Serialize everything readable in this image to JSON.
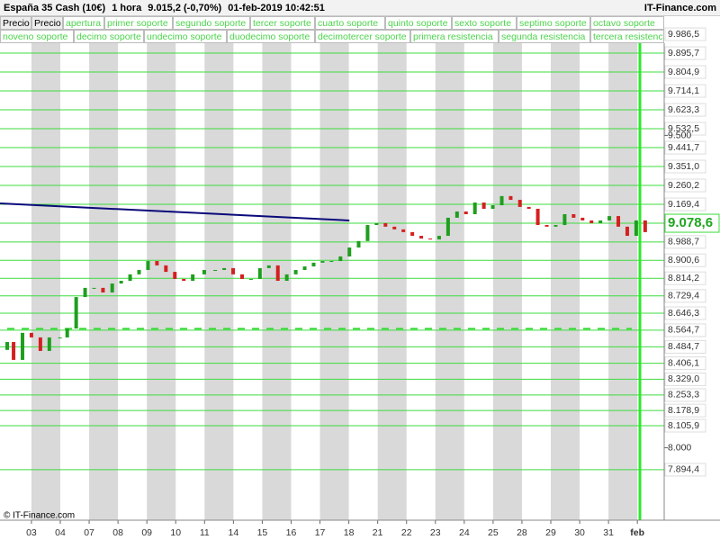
{
  "header": {
    "title": "España 35 Cash (10€)",
    "interval": "1 hora",
    "price": "9.015,2 (-0,70%)",
    "datetime": "01-feb-2019 10:42:51",
    "site": "IT-Finance.com"
  },
  "buttons": [
    [
      "Precio",
      "Precio",
      "apertura",
      "primer soporte",
      "segundo soporte",
      "tercer soporte",
      "cuarto soporte",
      "quinto soporte",
      "sexto soporte",
      "septimo soporte",
      "octavo soporte"
    ],
    [
      "noveno soporte",
      "decimo soporte",
      "undecimo soporte",
      "duodecimo soporte",
      "decimotercer soporte",
      "primera resistencia",
      "segunda resistencia",
      "tercera resistencia"
    ]
  ],
  "chart_data": {
    "type": "candlestick",
    "x": [
      -0.84,
      -0.62,
      -0.31,
      0,
      0.31,
      0.62,
      0.99,
      1.24,
      1.55,
      1.86,
      2.17,
      2.48,
      2.8,
      3.11,
      3.42,
      3.73,
      4.04,
      4.35,
      4.66,
      4.97,
      5.28,
      5.59,
      5.99,
      6.37,
      6.68,
      6.99,
      7.3,
      7.61,
      7.92,
      8.23,
      8.54,
      8.85,
      9.16,
      9.47,
      9.78,
      10.09,
      10.4,
      10.71,
      11.02,
      11.34,
      11.65,
      11.96,
      12.27,
      12.58,
      12.89,
      13.2,
      13.51,
      13.82,
      14.13,
      14.44,
      14.75,
      15.06,
      15.37,
      15.68,
      15.99,
      16.3,
      16.61,
      16.93,
      17.24,
      17.55,
      17.86,
      18.17,
      18.48,
      18.79,
      19.1,
      19.41,
      19.72,
      20.03,
      20.34,
      20.65,
      20.96,
      21.27
    ],
    "open": [
      8470,
      8508,
      8422,
      8552,
      8530,
      8465,
      8530,
      8530,
      8573,
      8724,
      8768,
      8768,
      8746,
      8789,
      8802,
      8833,
      8854,
      8897,
      8876,
      8845,
      8811,
      8802,
      8833,
      8854,
      8854,
      8863,
      8833,
      8811,
      8811,
      8863,
      8876,
      8802,
      8833,
      8854,
      8871,
      8889,
      8897,
      8897,
      8919,
      8962,
      8993,
      9070,
      9079,
      9062,
      9049,
      9036,
      9018,
      9005,
      9001,
      9018,
      9105,
      9135,
      9122,
      9178,
      9148,
      9165,
      9209,
      9191,
      9157,
      9148,
      9070,
      9062,
      9070,
      9122,
      9105,
      9092,
      9079,
      9092,
      9113,
      9062,
      9018,
      9092
    ],
    "close": [
      8508,
      8422,
      8552,
      8530,
      8465,
      8530,
      8530,
      8573,
      8724,
      8768,
      8768,
      8746,
      8789,
      8802,
      8833,
      8854,
      8897,
      8876,
      8845,
      8811,
      8802,
      8833,
      8854,
      8854,
      8863,
      8833,
      8811,
      8811,
      8863,
      8876,
      8802,
      8833,
      8854,
      8871,
      8889,
      8897,
      8897,
      8919,
      8962,
      8993,
      9070,
      9079,
      9062,
      9049,
      9036,
      9018,
      9005,
      9001,
      9018,
      9105,
      9135,
      9122,
      9178,
      9148,
      9165,
      9209,
      9191,
      9157,
      9148,
      9070,
      9062,
      9070,
      9122,
      9105,
      9092,
      9079,
      9092,
      9113,
      9062,
      9018,
      9092,
      9036
    ],
    "up_color": "#1f9e1f",
    "down_color": "#d42020",
    "level_color": "#3ddc3d",
    "xlim": [
      -1.09,
      21.93
    ],
    "xticks": [
      {
        "value": 0,
        "label": "03"
      },
      {
        "value": 1,
        "label": "04"
      },
      {
        "value": 2,
        "label": "07"
      },
      {
        "value": 3,
        "label": "08"
      },
      {
        "value": 4,
        "label": "09"
      },
      {
        "value": 5,
        "label": "10"
      },
      {
        "value": 6,
        "label": "11"
      },
      {
        "value": 7,
        "label": "14"
      },
      {
        "value": 8,
        "label": "15"
      },
      {
        "value": 9,
        "label": "16"
      },
      {
        "value": 10,
        "label": "17"
      },
      {
        "value": 11,
        "label": "18"
      },
      {
        "value": 12,
        "label": "21"
      },
      {
        "value": 13,
        "label": "22"
      },
      {
        "value": 14,
        "label": "23"
      },
      {
        "value": 15,
        "label": "24"
      },
      {
        "value": 16,
        "label": "25"
      },
      {
        "value": 17,
        "label": "28"
      },
      {
        "value": 18,
        "label": "29"
      },
      {
        "value": 19,
        "label": "30"
      },
      {
        "value": 20,
        "label": "31"
      },
      {
        "value": 21,
        "label": "feb"
      }
    ],
    "ylim": [
      7652,
      10151
    ],
    "yticks": [
      {
        "value": 9986.5,
        "label": "9.986,5"
      },
      {
        "value": 9895.7,
        "label": "9.895,7"
      },
      {
        "value": 9804.9,
        "label": "9.804,9"
      },
      {
        "value": 9714.1,
        "label": "9.714,1"
      },
      {
        "value": 9623.3,
        "label": "9.623,3"
      },
      {
        "value": 9532.5,
        "label": "9.532,5"
      },
      {
        "value": 9441.7,
        "label": "9.441,7"
      },
      {
        "value": 9351,
        "label": "9.351,0"
      },
      {
        "value": 9260.2,
        "label": "9.260,2"
      },
      {
        "value": 9169.4,
        "label": "9.169,4"
      },
      {
        "value": 8988.7,
        "label": "8.988,7"
      },
      {
        "value": 8900.6,
        "label": "8.900,6"
      },
      {
        "value": 8814.2,
        "label": "8.814,2"
      },
      {
        "value": 8729.4,
        "label": "8.729,4"
      },
      {
        "value": 8646.3,
        "label": "8.646,3"
      },
      {
        "value": 8564.7,
        "label": "8.564,7"
      },
      {
        "value": 8484.7,
        "label": "8.484,7"
      },
      {
        "value": 8406.1,
        "label": "8.406,1"
      },
      {
        "value": 8329,
        "label": "8.329,0"
      },
      {
        "value": 8253.3,
        "label": "8.253,3"
      },
      {
        "value": 8178.9,
        "label": "8.178,9"
      },
      {
        "value": 8105.9,
        "label": "8.105,9"
      },
      {
        "value": 7894.4,
        "label": "7.894,4"
      }
    ],
    "minor_yticks": [
      {
        "value": 9500,
        "label": "9.500"
      },
      {
        "value": 8000,
        "label": "8.000"
      }
    ],
    "last_price": {
      "value": 9078.6,
      "label": "9.078,6"
    },
    "dashed_level": 8572,
    "trendline": {
      "x": [
        -1.09,
        11.02
      ],
      "values": [
        9174,
        9092
      ]
    },
    "footer": "© IT-Finance.com"
  }
}
